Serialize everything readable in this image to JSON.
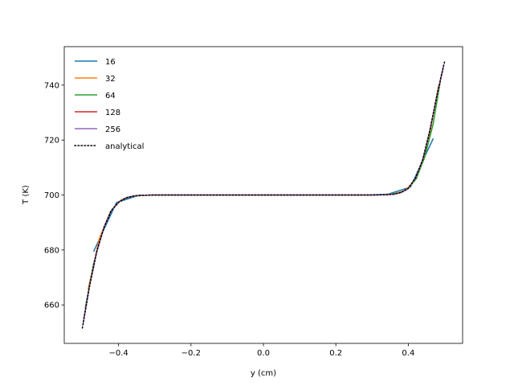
{
  "chart_data": {
    "type": "line",
    "title": "",
    "xlabel": "y (cm)",
    "ylabel": "T (K)",
    "xlim": [
      -0.55,
      0.55
    ],
    "ylim": [
      646,
      754
    ],
    "xticks": [
      -0.4,
      -0.2,
      0.0,
      0.2,
      0.4
    ],
    "xtick_labels": [
      "−0.4",
      "−0.2",
      "0.0",
      "0.2",
      "0.4"
    ],
    "yticks": [
      660,
      680,
      700,
      720,
      740
    ],
    "ytick_labels": [
      "660",
      "680",
      "700",
      "720",
      "740"
    ],
    "grid": false,
    "legend_position": "top-left",
    "series": [
      {
        "name": "16",
        "color": "#1f77b4",
        "style": "solid",
        "x": [
          -0.469,
          -0.406,
          -0.344,
          -0.281,
          -0.219,
          -0.156,
          -0.094,
          -0.031,
          0.031,
          0.094,
          0.156,
          0.219,
          0.281,
          0.344,
          0.406,
          0.469
        ],
        "y": [
          679.4,
          697.2,
          699.9,
          700.0,
          700.0,
          700.0,
          700.0,
          700.0,
          700.0,
          700.0,
          700.0,
          700.0,
          700.0,
          700.3,
          702.9,
          720.6
        ]
      },
      {
        "name": "32",
        "color": "#ff7f0e",
        "style": "solid",
        "x": [
          -0.484,
          -0.453,
          -0.422,
          -0.391,
          -0.359,
          -0.328,
          -0.297,
          -0.266,
          -0.234,
          -0.203,
          -0.172,
          -0.141,
          -0.109,
          -0.078,
          -0.047,
          -0.016,
          0.016,
          0.047,
          0.078,
          0.109,
          0.141,
          0.172,
          0.203,
          0.234,
          0.266,
          0.297,
          0.328,
          0.359,
          0.391,
          0.422,
          0.453,
          0.484
        ],
        "y": [
          665.7,
          684.2,
          694.1,
          698.4,
          699.6,
          699.9,
          700.0,
          700.0,
          700.0,
          700.0,
          700.0,
          700.0,
          700.0,
          700.0,
          700.0,
          700.0,
          700.0,
          700.0,
          700.0,
          700.0,
          700.0,
          700.0,
          700.0,
          700.0,
          700.0,
          700.0,
          700.1,
          700.4,
          701.6,
          705.9,
          717.8,
          740.0
        ]
      },
      {
        "name": "64",
        "color": "#2ca02c",
        "style": "solid",
        "x": [
          -0.492,
          -0.469,
          -0.445,
          -0.422,
          -0.398,
          -0.375,
          -0.352,
          -0.328,
          -0.25,
          -0.15,
          -0.05,
          0.05,
          0.15,
          0.25,
          0.328,
          0.352,
          0.375,
          0.398,
          0.422,
          0.445,
          0.469,
          0.492
        ],
        "y": [
          658.9,
          675.0,
          686.4,
          694.1,
          697.7,
          699.2,
          699.7,
          699.9,
          700.0,
          700.0,
          700.0,
          700.0,
          700.0,
          700.0,
          700.1,
          700.3,
          700.8,
          702.1,
          705.9,
          713.6,
          726.0,
          744.2
        ]
      },
      {
        "name": "128",
        "color": "#d62728",
        "style": "solid",
        "x": [
          -0.496,
          -0.48,
          -0.46,
          -0.44,
          -0.42,
          -0.4,
          -0.38,
          -0.36,
          -0.34,
          -0.3,
          -0.1,
          0.1,
          0.3,
          0.34,
          0.36,
          0.38,
          0.4,
          0.42,
          0.44,
          0.46,
          0.48,
          0.496
        ],
        "y": [
          655.0,
          667.0,
          679.6,
          688.3,
          694.3,
          697.4,
          698.9,
          699.6,
          699.9,
          700.0,
          700.0,
          700.0,
          700.0,
          700.1,
          700.3,
          700.9,
          702.4,
          706.2,
          712.9,
          723.7,
          736.8,
          746.0
        ]
      },
      {
        "name": "256",
        "color": "#9467bd",
        "style": "solid",
        "x": [
          -0.498,
          -0.48,
          -0.46,
          -0.44,
          -0.42,
          -0.4,
          -0.38,
          -0.36,
          -0.34,
          -0.3,
          -0.1,
          0.1,
          0.3,
          0.34,
          0.36,
          0.38,
          0.4,
          0.42,
          0.44,
          0.46,
          0.48,
          0.498
        ],
        "y": [
          653.0,
          667.0,
          679.6,
          688.3,
          694.3,
          697.4,
          698.9,
          699.6,
          699.9,
          700.0,
          700.0,
          700.0,
          700.0,
          700.1,
          700.3,
          700.9,
          702.4,
          706.2,
          712.9,
          723.7,
          736.8,
          747.5
        ]
      },
      {
        "name": "analytical",
        "color": "#000000",
        "style": "dotted",
        "x": [
          -0.5,
          -0.48,
          -0.46,
          -0.44,
          -0.42,
          -0.4,
          -0.38,
          -0.36,
          -0.34,
          -0.3,
          -0.1,
          0.1,
          0.3,
          0.34,
          0.36,
          0.38,
          0.4,
          0.42,
          0.44,
          0.46,
          0.48,
          0.5
        ],
        "y": [
          651.6,
          667.0,
          679.6,
          688.3,
          694.3,
          697.4,
          698.9,
          699.6,
          699.9,
          700.0,
          700.0,
          700.0,
          700.0,
          700.1,
          700.3,
          700.9,
          702.4,
          706.2,
          712.9,
          723.7,
          736.8,
          748.4
        ]
      }
    ]
  }
}
